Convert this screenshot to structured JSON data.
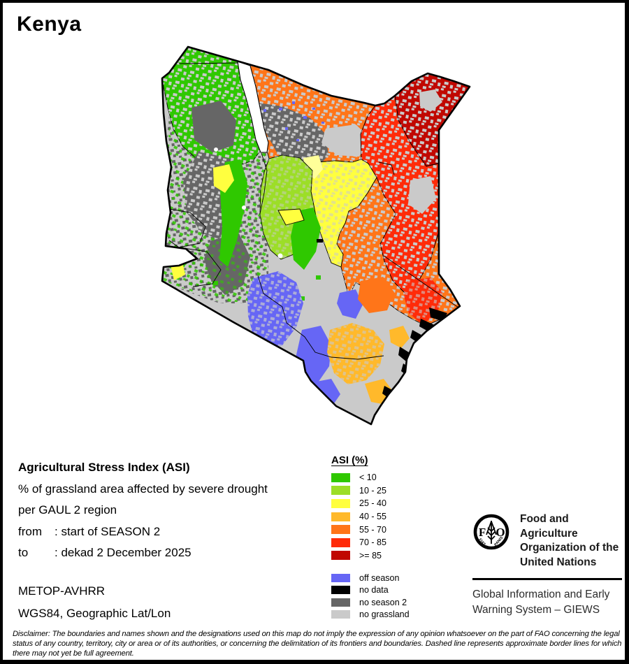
{
  "title": "Kenya",
  "palette": {
    "green": "#2FC800",
    "lightgreen": "#9CDE27",
    "yellow": "#FFFF3F",
    "paleyellow": "#FFFF99",
    "amber": "#FFB92B",
    "orange": "#FF7519",
    "red": "#FF2B09",
    "darkred": "#C00801",
    "blue": "#6666F5",
    "black": "#000000",
    "darkgray": "#666666",
    "lightgray": "#CACACA",
    "white": "#FFFFFF",
    "line": "#000000"
  },
  "info": {
    "heading": "Agricultural Stress Index (ASI)",
    "line1": "% of grassland area affected by severe drought",
    "line2": "per GAUL 2 region",
    "from_label": "from",
    "from_value": ": start of SEASON 2",
    "to_label": "to",
    "to_value": ": dekad 2 December 2025"
  },
  "legend": {
    "title": "ASI (%)",
    "asi_classes": [
      {
        "label": "< 10",
        "color": "#2FC800"
      },
      {
        "label": "10 - 25",
        "color": "#9CDE27"
      },
      {
        "label": "25 - 40",
        "color": "#FFFF3F"
      },
      {
        "label": "40 - 55",
        "color": "#FFB92B"
      },
      {
        "label": "55 - 70",
        "color": "#FF7519"
      },
      {
        "label": "70 - 85",
        "color": "#FF2B09"
      },
      {
        "label": ">= 85",
        "color": "#C00801"
      }
    ],
    "other_classes": [
      {
        "label": "off season",
        "color": "#6666F5"
      },
      {
        "label": "no data",
        "color": "#000000"
      },
      {
        "label": "no season 2",
        "color": "#666666"
      },
      {
        "label": "no grassland",
        "color": "#CACACA"
      }
    ]
  },
  "sensor": "METOP-AVHRR",
  "projection": "WGS84, Geographic Lat/Lon",
  "fao": {
    "logo_letter_f": "F",
    "logo_letter_o": "O",
    "motto_left": "FIAT",
    "motto_right": "PANIS",
    "org_lines": [
      "Food and Agriculture",
      "Organization of the",
      "United Nations"
    ],
    "giews_lines": [
      "Global Information and Early",
      "Warning System – GIEWS"
    ]
  },
  "disclaimer": "Disclaimer: The boundaries and names shown and the designations used on this map do not imply the expression of any opinion whatsoever on the part of FAO concerning the legal status of any country, territory, city or area or of its authorities, or concerning the delimitation of its frontiers and boundaries. Dashed line represents approximate border lines for which there may not yet be full agreement."
}
